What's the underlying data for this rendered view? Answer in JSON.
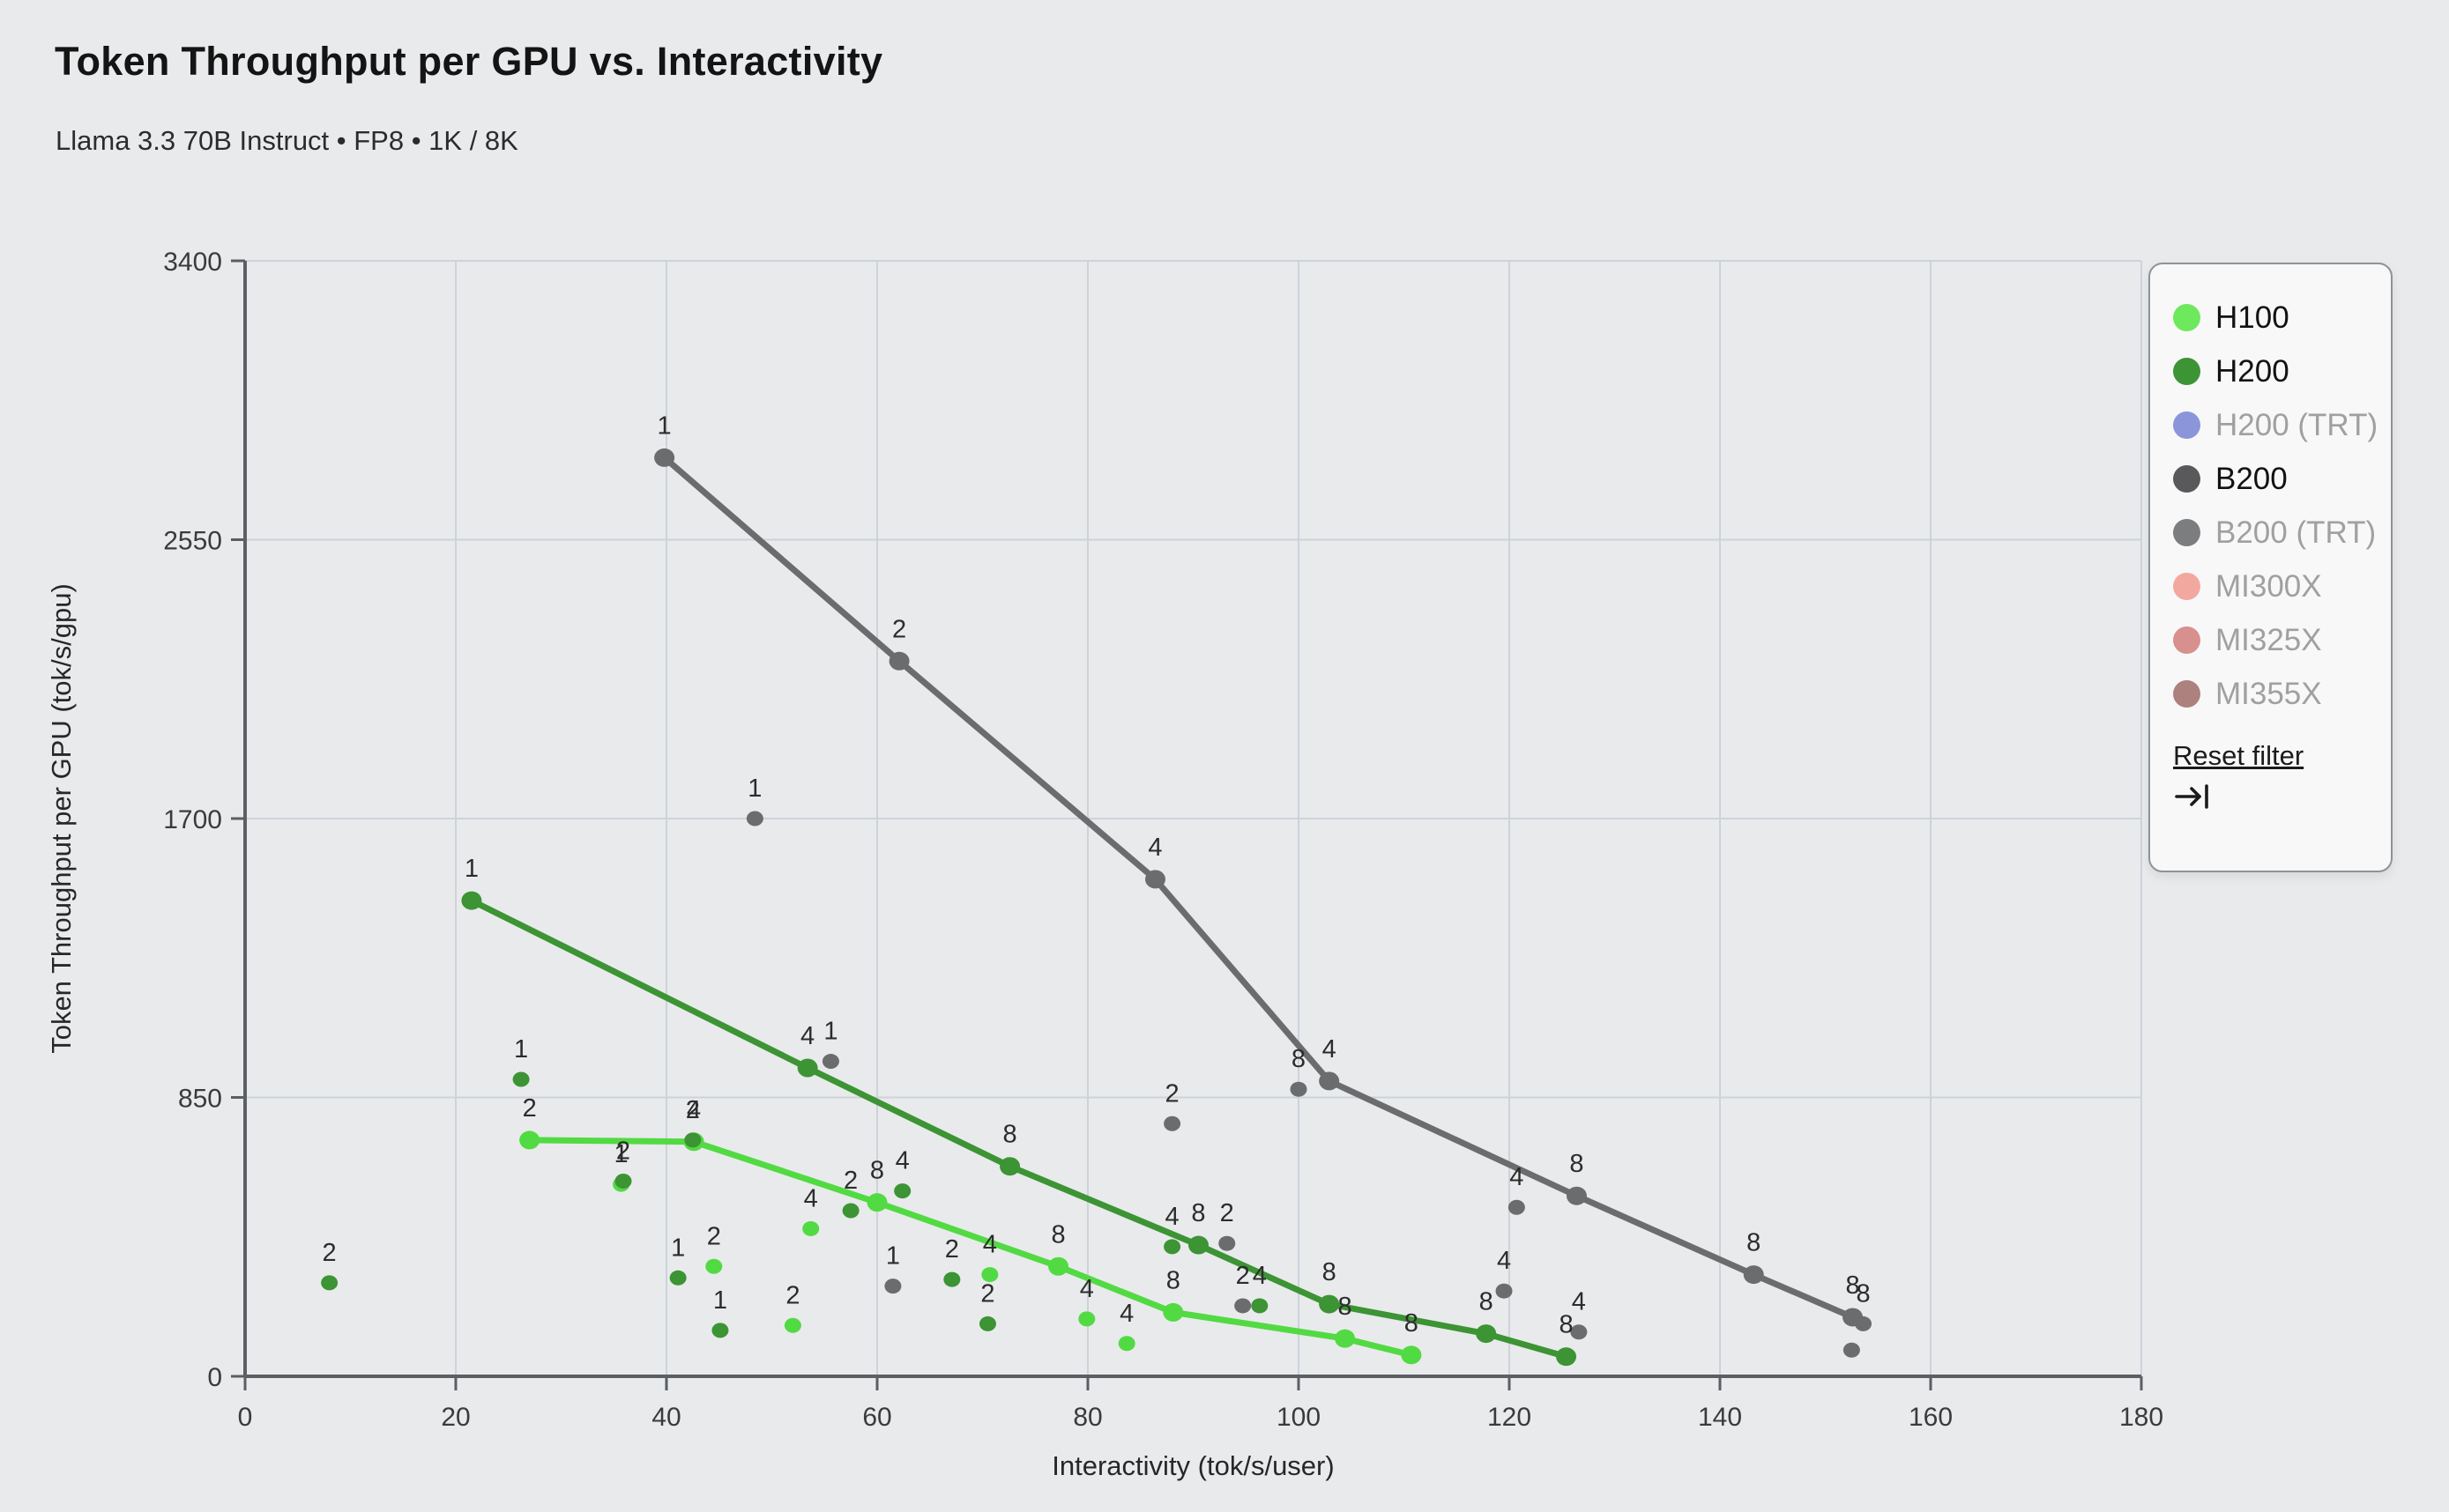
{
  "page": {
    "title": "Token Throughput per GPU vs. Interactivity",
    "subtitle": "Llama 3.3 70B Instruct • FP8 • 1K / 8K"
  },
  "chart_data": {
    "type": "scatter",
    "title": "Token Throughput per GPU vs. Interactivity",
    "subtitle": "Llama 3.3 70B Instruct • FP8 • 1K / 8K",
    "xlabel": "Interactivity (tok/s/user)",
    "ylabel": "Token Throughput per GPU (tok/s/gpu)",
    "xlim": [
      0,
      180
    ],
    "ylim": [
      0,
      3400
    ],
    "xticks": [
      0,
      20,
      40,
      60,
      80,
      100,
      120,
      140,
      160,
      180
    ],
    "yticks": [
      0,
      850,
      1700,
      2550,
      3400
    ],
    "grid": true,
    "point_label_meaning": "GPU count per config; lines join pareto-optimal configs",
    "series": [
      {
        "name": "H100",
        "color": "#52da43",
        "visible": true,
        "pareto_line": [
          {
            "x": 27.0,
            "y": 720,
            "label": "2"
          },
          {
            "x": 42.6,
            "y": 715,
            "label": "4"
          },
          {
            "x": 60.0,
            "y": 530,
            "label": "8"
          },
          {
            "x": 77.2,
            "y": 335,
            "label": "8"
          },
          {
            "x": 88.1,
            "y": 195,
            "label": "8"
          },
          {
            "x": 104.4,
            "y": 115,
            "label": "8"
          },
          {
            "x": 110.7,
            "y": 65,
            "label": "8"
          }
        ],
        "scatter": [
          {
            "x": 35.7,
            "y": 585,
            "label": "1"
          },
          {
            "x": 44.5,
            "y": 335,
            "label": "2"
          },
          {
            "x": 52.0,
            "y": 155,
            "label": "2"
          },
          {
            "x": 53.7,
            "y": 450,
            "label": "4"
          },
          {
            "x": 70.7,
            "y": 310,
            "label": "4"
          },
          {
            "x": 79.9,
            "y": 175,
            "label": "4"
          },
          {
            "x": 83.7,
            "y": 100,
            "label": "4"
          }
        ]
      },
      {
        "name": "B200",
        "color": "#6a6c6e",
        "visible": true,
        "pareto_line": [
          {
            "x": 39.8,
            "y": 2800,
            "label": "1"
          },
          {
            "x": 62.1,
            "y": 2180,
            "label": "2"
          },
          {
            "x": 86.4,
            "y": 1515,
            "label": "4"
          },
          {
            "x": 102.9,
            "y": 900,
            "label": "4"
          },
          {
            "x": 126.4,
            "y": 550,
            "label": "8"
          },
          {
            "x": 143.2,
            "y": 310,
            "label": "8"
          },
          {
            "x": 152.6,
            "y": 180,
            "label": "8"
          }
        ],
        "scatter": [
          {
            "x": 48.4,
            "y": 1700,
            "label": "1"
          },
          {
            "x": 55.6,
            "y": 960,
            "label": "1"
          },
          {
            "x": 61.5,
            "y": 275,
            "label": "1"
          },
          {
            "x": 88.0,
            "y": 770,
            "label": "2"
          },
          {
            "x": 93.2,
            "y": 405,
            "label": "2"
          },
          {
            "x": 94.7,
            "y": 215,
            "label": "2"
          },
          {
            "x": 100.0,
            "y": 875,
            "label": "8"
          },
          {
            "x": 119.5,
            "y": 260,
            "label": "4"
          },
          {
            "x": 120.7,
            "y": 515,
            "label": "4"
          },
          {
            "x": 126.6,
            "y": 135,
            "label": "4"
          },
          {
            "x": 153.6,
            "y": 160,
            "label": "8"
          },
          {
            "x": 152.5,
            "y": 80,
            "label": ""
          }
        ]
      },
      {
        "name": "H200",
        "color": "#3c9434",
        "visible": true,
        "pareto_line": [
          {
            "x": 21.5,
            "y": 1450,
            "label": "1"
          },
          {
            "x": 53.4,
            "y": 940,
            "label": "4"
          },
          {
            "x": 72.6,
            "y": 640,
            "label": "8"
          },
          {
            "x": 90.5,
            "y": 400,
            "label": "8"
          },
          {
            "x": 102.9,
            "y": 220,
            "label": "8"
          },
          {
            "x": 117.8,
            "y": 130,
            "label": "8"
          },
          {
            "x": 125.4,
            "y": 60,
            "label": "8"
          }
        ],
        "scatter": [
          {
            "x": 8.0,
            "y": 285,
            "label": "2"
          },
          {
            "x": 26.2,
            "y": 905,
            "label": "1"
          },
          {
            "x": 35.9,
            "y": 595,
            "label": "2"
          },
          {
            "x": 41.1,
            "y": 300,
            "label": "1"
          },
          {
            "x": 42.5,
            "y": 720,
            "label": "2"
          },
          {
            "x": 45.1,
            "y": 140,
            "label": "1"
          },
          {
            "x": 57.5,
            "y": 505,
            "label": "2"
          },
          {
            "x": 62.4,
            "y": 565,
            "label": "4"
          },
          {
            "x": 67.1,
            "y": 295,
            "label": "2"
          },
          {
            "x": 70.5,
            "y": 160,
            "label": "2"
          },
          {
            "x": 88.0,
            "y": 395,
            "label": "4"
          },
          {
            "x": 96.3,
            "y": 215,
            "label": "4"
          }
        ]
      },
      {
        "name": "H200 (TRT)",
        "color": "#8b95d9",
        "visible": false
      },
      {
        "name": "B200 (TRT)",
        "color": "#7c7d7f",
        "visible": false
      },
      {
        "name": "MI300X",
        "color": "#f3a89f",
        "visible": false
      },
      {
        "name": "MI325X",
        "color": "#d8908e",
        "visible": false
      },
      {
        "name": "MI355X",
        "color": "#ad817e",
        "visible": false
      }
    ]
  },
  "legend": {
    "items": [
      {
        "label": "H100",
        "color": "#6ee85c",
        "active": true
      },
      {
        "label": "H200",
        "color": "#3c9434",
        "active": true
      },
      {
        "label": "H200 (TRT)",
        "color": "#8b95d9",
        "active": false
      },
      {
        "label": "B200",
        "color": "#59595b",
        "active": true
      },
      {
        "label": "B200 (TRT)",
        "color": "#7c7d7f",
        "active": false
      },
      {
        "label": "MI300X",
        "color": "#f3a89f",
        "active": false
      },
      {
        "label": "MI325X",
        "color": "#d8908e",
        "active": false
      },
      {
        "label": "MI355X",
        "color": "#ad817e",
        "active": false
      }
    ],
    "reset_label": "Reset filter"
  },
  "style": {
    "background": "#e9eaec",
    "grid_color": "#cdd3da",
    "axis_color": "#5b5e62",
    "tick_text_color": "#3b3b3b",
    "point_label_color": "#2c2c2c"
  }
}
